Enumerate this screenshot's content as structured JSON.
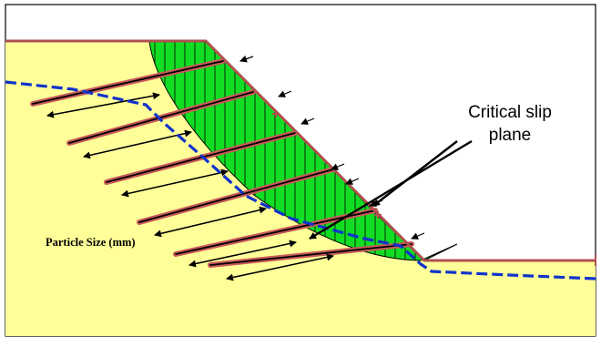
{
  "diagram": {
    "callout_label_line1": "Critical slip",
    "callout_label_line2": "plane",
    "particle_size_label": "Particle Size (mm)",
    "colors": {
      "soil": "#FFFF99",
      "slip_mass": "#11DD22",
      "slope_surface": "#B05050",
      "water_table": "#1133CC",
      "nail_outer": "#C85A5A",
      "nail_core": "#000000",
      "frame": "#000000"
    },
    "counts": {
      "soil_nails": 6,
      "surface_force_arrows": 7,
      "slice_lines": "many"
    }
  }
}
